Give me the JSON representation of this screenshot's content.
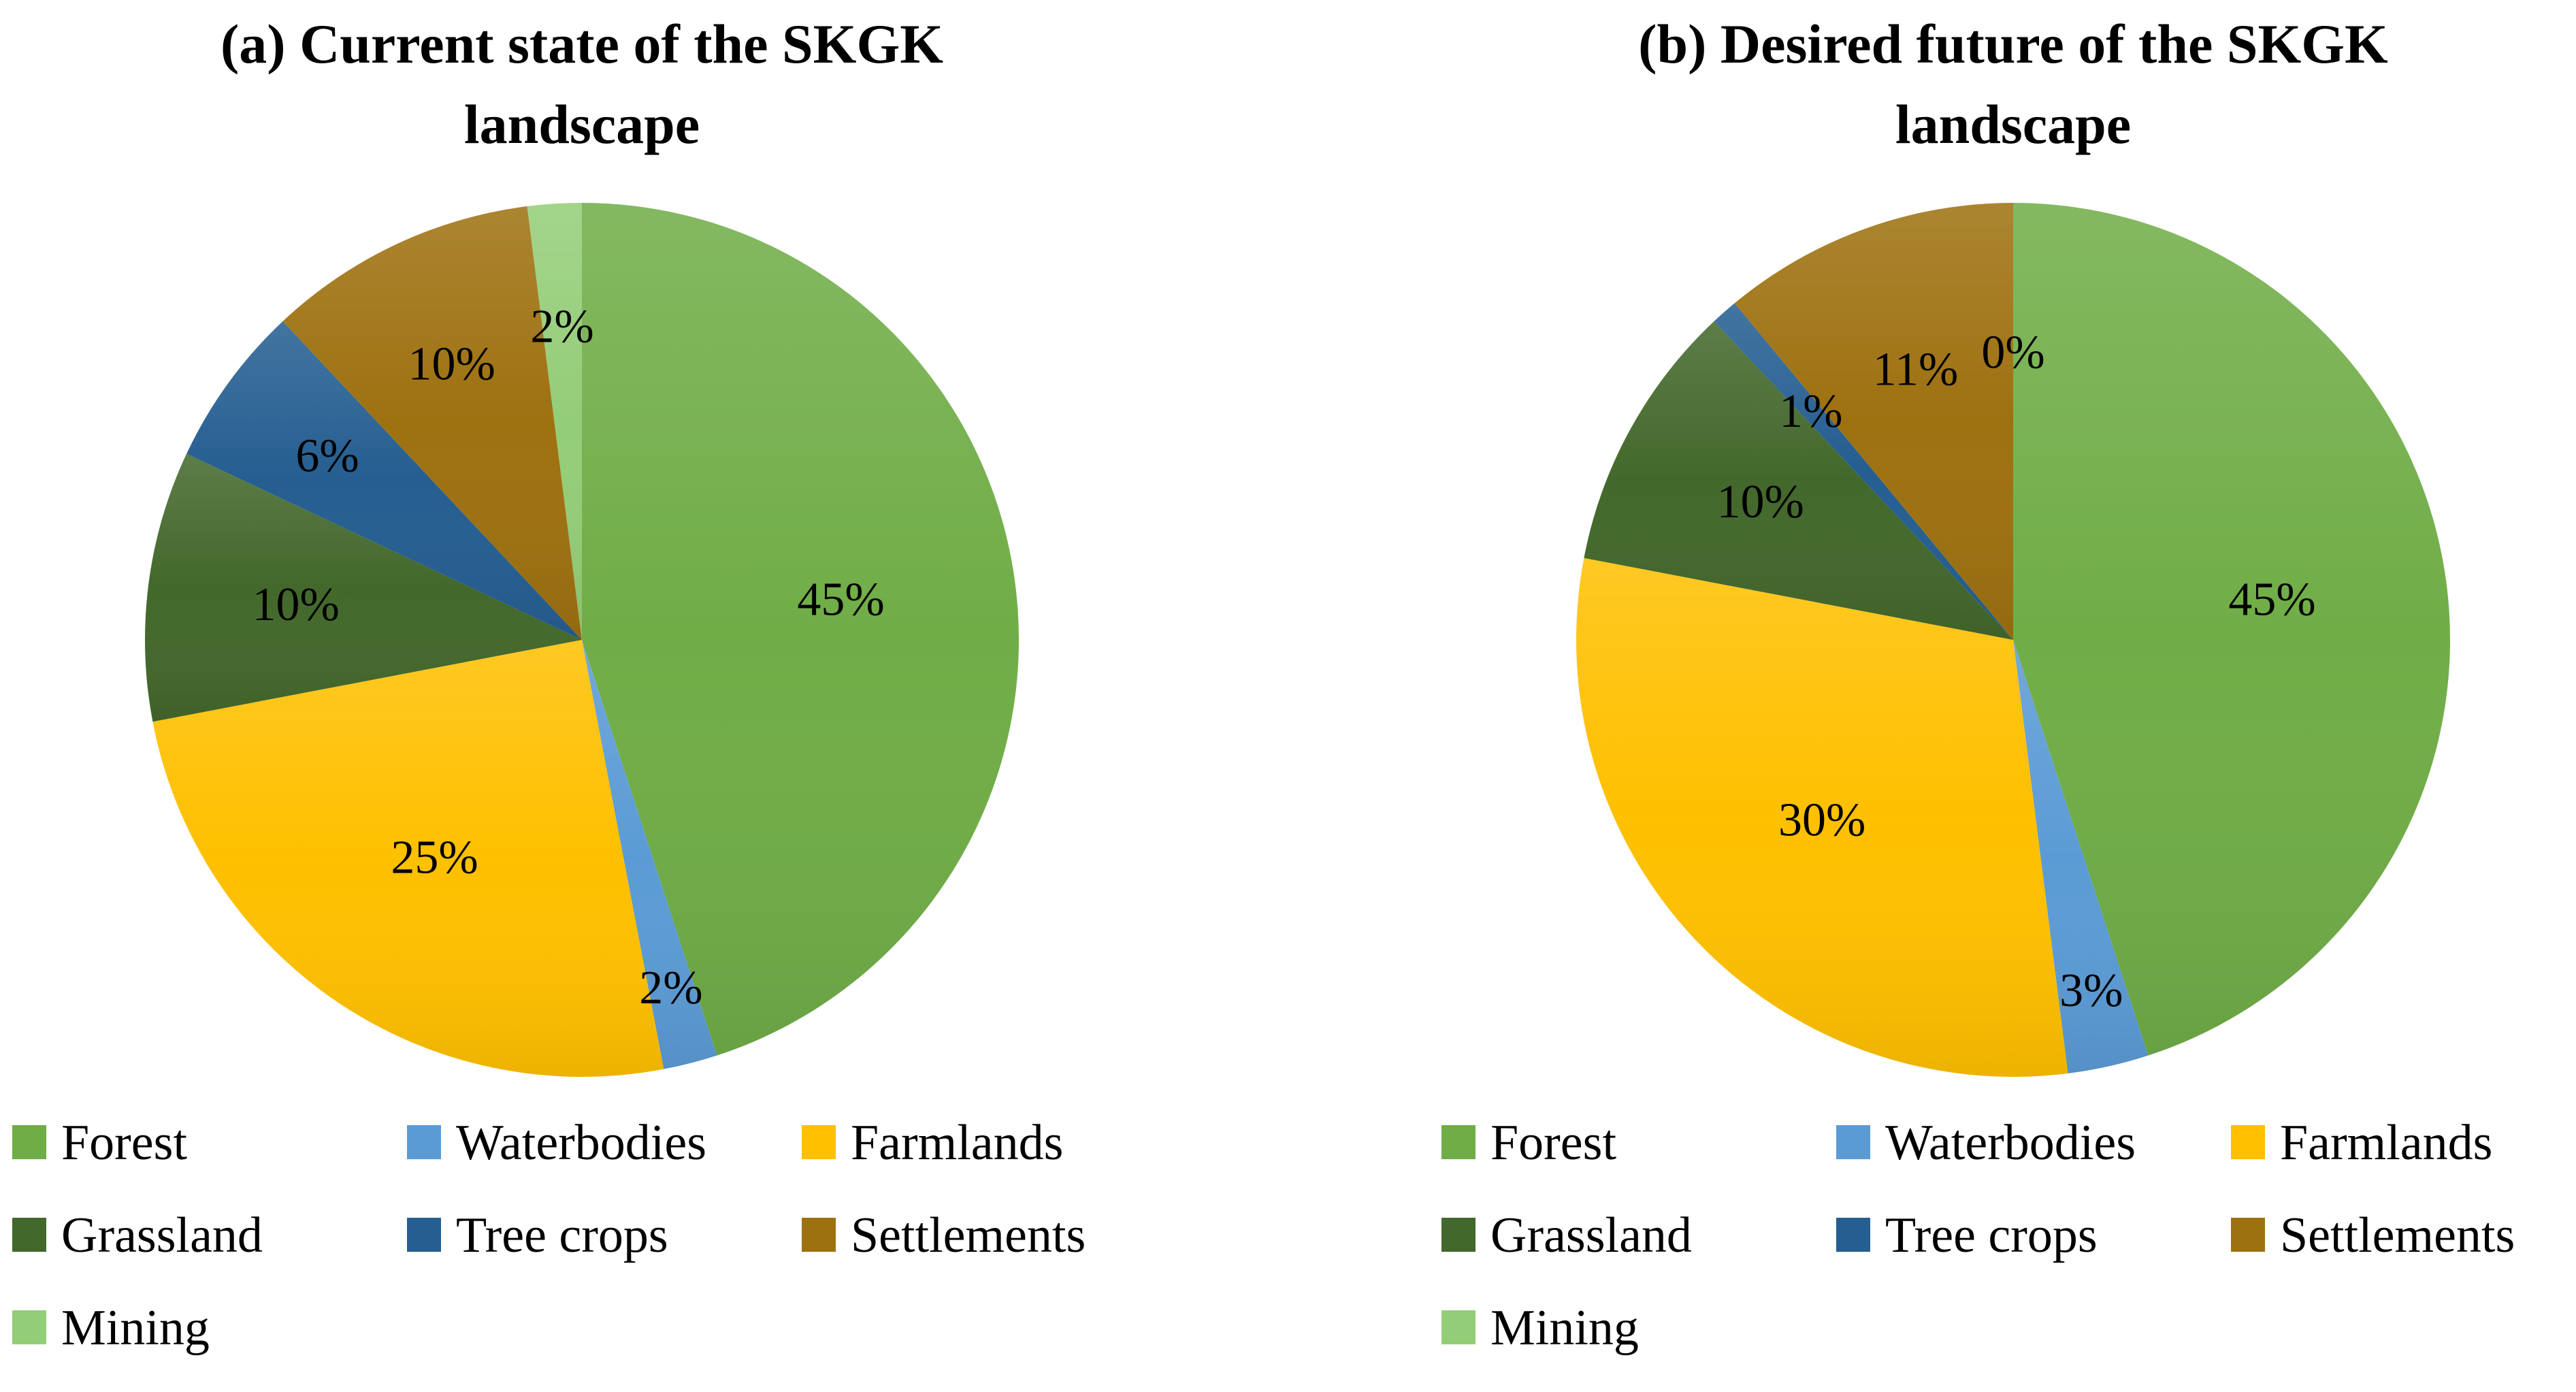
{
  "colors": {
    "Forest": "#70ad47",
    "Waterbodies": "#5b9bd5",
    "Farmlands": "#ffc000",
    "Grassland": "#43682b",
    "Tree crops": "#255e91",
    "Settlements": "#9e7110",
    "Mining": "#94cd78"
  },
  "chart_data": [
    {
      "type": "pie",
      "title_line1": "(a) Current state of the SKGK",
      "title_line2": "landscape",
      "categories": [
        "Forest",
        "Waterbodies",
        "Farmlands",
        "Grassland",
        "Tree crops",
        "Settlements",
        "Mining"
      ],
      "values": [
        45,
        2,
        25,
        10,
        6,
        10,
        2
      ],
      "labels": [
        "45%",
        "2%",
        "25%",
        "10%",
        "6%",
        "10%",
        "2%"
      ]
    },
    {
      "type": "pie",
      "title_line1": "(b) Desired future of the SKGK",
      "title_line2": "landscape",
      "categories": [
        "Forest",
        "Waterbodies",
        "Farmlands",
        "Grassland",
        "Tree crops",
        "Settlements",
        "Mining"
      ],
      "values": [
        45,
        3,
        30,
        10,
        1,
        11,
        0
      ],
      "labels": [
        "45%",
        "3%",
        "30%",
        "10%",
        "1%",
        "11%",
        "0%"
      ]
    }
  ]
}
